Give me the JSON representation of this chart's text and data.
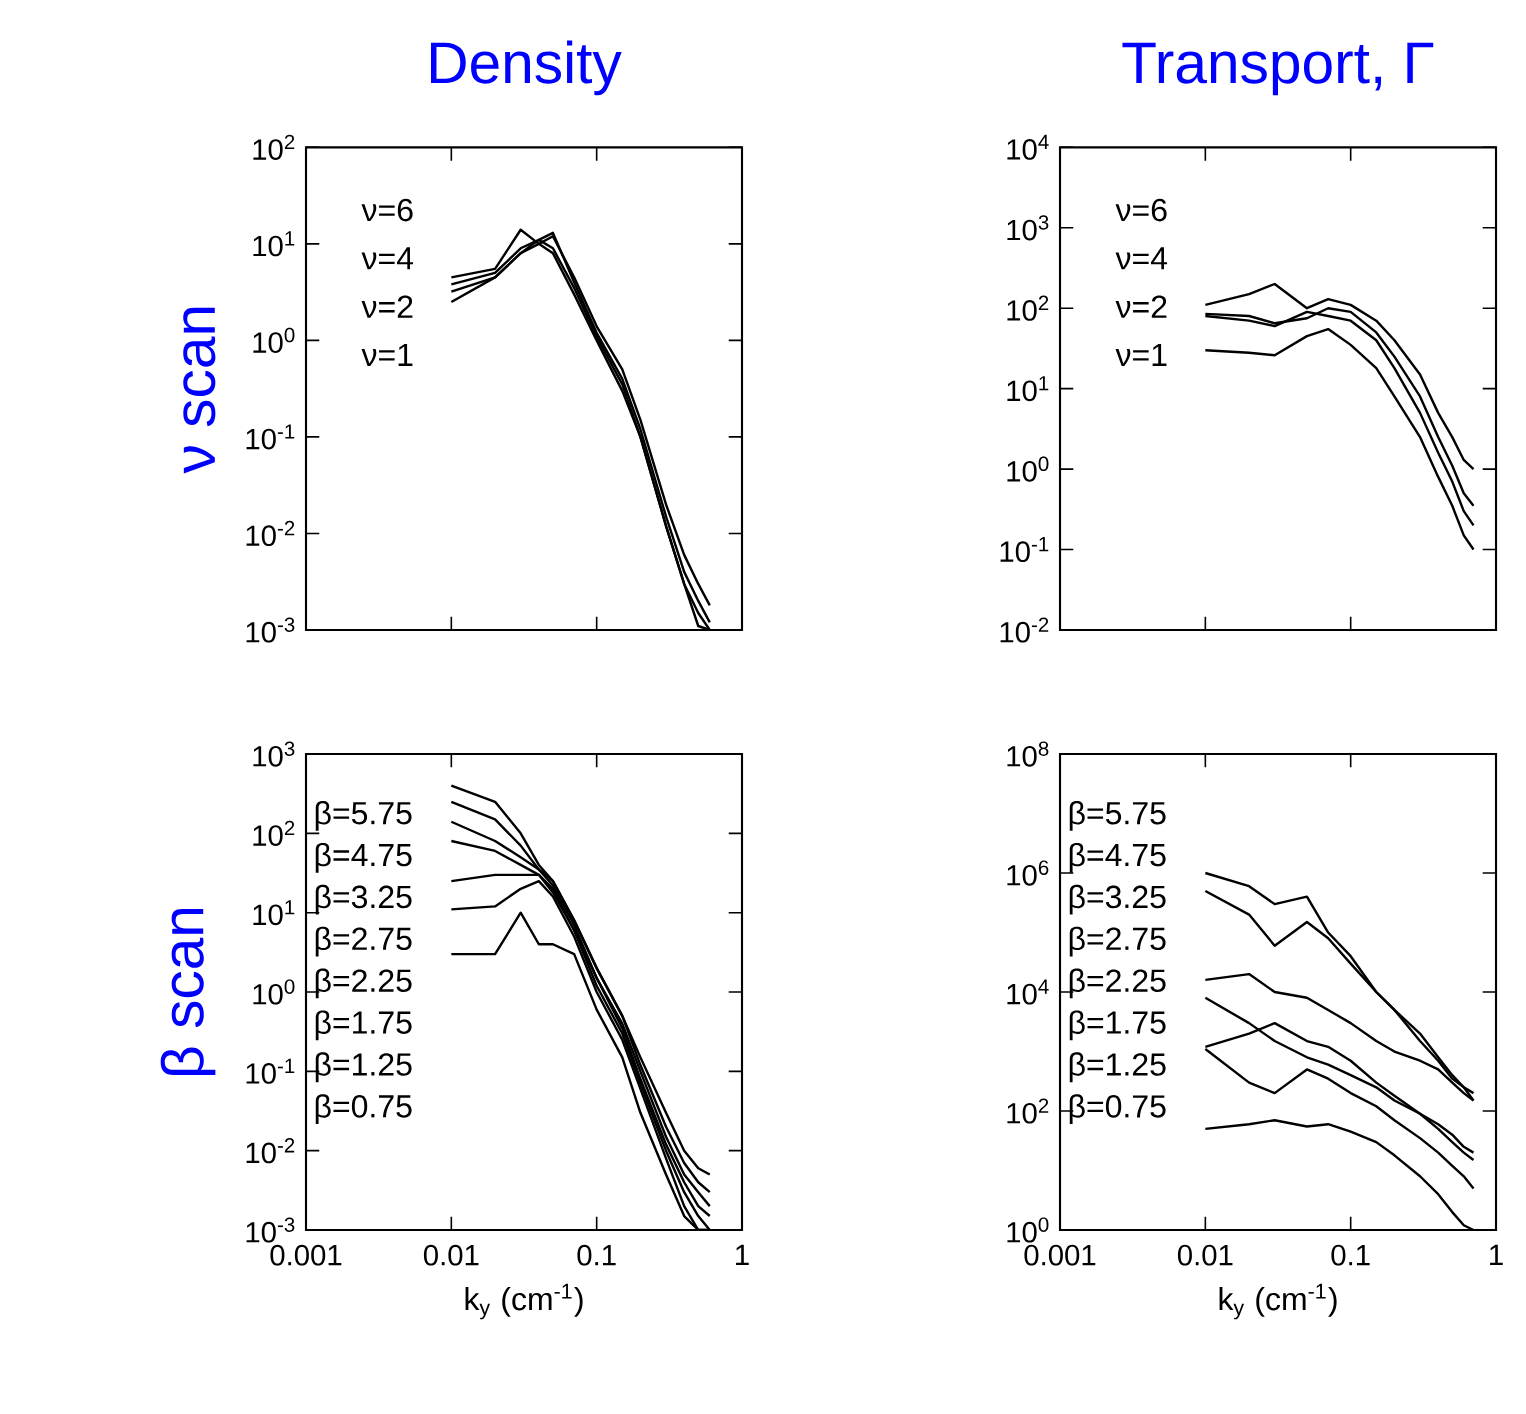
{
  "chart_data": [
    {
      "type": "line",
      "title": "Density",
      "ylabel": "ν scan",
      "log": "xy",
      "tick_labels": "y",
      "xlim": [
        0.001,
        1
      ],
      "ylim": [
        0.001,
        100
      ],
      "xticks": [
        0.001,
        0.01,
        0.1,
        1
      ],
      "yticks": [
        {
          "value": 0.001,
          "label": "10$^{-3}$"
        },
        {
          "value": 0.01,
          "label": "10$^{-2}$"
        },
        {
          "value": 0.1,
          "label": "10$^{-1}$"
        },
        {
          "value": 1,
          "label": "10$^{0}$"
        },
        {
          "value": 10,
          "label": "10$^{1}$"
        },
        {
          "value": 100,
          "label": "10$^{2}$"
        }
      ],
      "x": [
        0.01,
        0.02,
        0.03,
        0.04,
        0.05,
        0.07,
        0.1,
        0.15,
        0.2,
        0.3,
        0.4,
        0.5,
        0.6
      ],
      "series": [
        {
          "color": "#000000",
          "values": [
            4.5,
            5.5,
            14,
            10,
            8,
            3,
            1.0,
            0.3,
            0.1,
            0.012,
            0.003,
            0.0015,
            0.001
          ]
        },
        {
          "color": "#000000",
          "values": [
            3.8,
            5,
            9,
            11,
            13,
            4,
            1.2,
            0.4,
            0.12,
            0.015,
            0.004,
            0.002,
            0.0012
          ]
        },
        {
          "color": "#000000",
          "values": [
            3.2,
            4.5,
            8,
            10,
            12,
            4.5,
            1.4,
            0.5,
            0.15,
            0.02,
            0.006,
            0.003,
            0.0018
          ]
        },
        {
          "color": "#000000",
          "values": [
            2.5,
            4.5,
            8,
            11,
            9,
            3.5,
            1.1,
            0.35,
            0.1,
            0.012,
            0.003,
            0.0011,
            0.001
          ]
        }
      ],
      "annotations": [
        "ν=6",
        "ν=4",
        "ν=2",
        "ν=1"
      ]
    },
    {
      "type": "line",
      "title": "Transport, Γ",
      "log": "xy",
      "tick_labels": "y",
      "xlim": [
        0.001,
        1
      ],
      "ylim": [
        0.01,
        10000
      ],
      "xticks": [
        0.001,
        0.01,
        0.1,
        1
      ],
      "yticks": [
        {
          "value": 0.01,
          "label": "10$^{-2}$"
        },
        {
          "value": 0.1,
          "label": "10$^{-1}$"
        },
        {
          "value": 1,
          "label": "10$^{0}$"
        },
        {
          "value": 10,
          "label": "10$^{1}$"
        },
        {
          "value": 100,
          "label": "10$^{2}$"
        },
        {
          "value": 1000,
          "label": "10$^{3}$"
        },
        {
          "value": 10000,
          "label": "10$^{4}$"
        }
      ],
      "x": [
        0.01,
        0.02,
        0.03,
        0.05,
        0.07,
        0.1,
        0.15,
        0.2,
        0.3,
        0.4,
        0.5,
        0.6,
        0.7
      ],
      "series": [
        {
          "color": "#000000",
          "values": [
            110,
            150,
            200,
            100,
            130,
            110,
            70,
            40,
            15,
            5,
            2.5,
            1.3,
            1.0
          ]
        },
        {
          "color": "#000000",
          "values": [
            85,
            80,
            65,
            75,
            100,
            90,
            50,
            25,
            8,
            2.5,
            1.1,
            0.5,
            0.35
          ]
        },
        {
          "color": "#000000",
          "values": [
            80,
            70,
            60,
            90,
            80,
            70,
            40,
            18,
            5,
            1.6,
            0.7,
            0.3,
            0.2
          ]
        },
        {
          "color": "#000000",
          "values": [
            30,
            28,
            26,
            45,
            55,
            35,
            18,
            8,
            2.5,
            0.8,
            0.35,
            0.15,
            0.1
          ]
        }
      ],
      "annotations": [
        "ν=6",
        "ν=4",
        "ν=2",
        "ν=1"
      ]
    },
    {
      "type": "line",
      "ylabel": "β scan",
      "xlabel": "k$_{y}$ (cm$^{-1}$)",
      "log": "xy",
      "xlim": [
        0.001,
        1
      ],
      "ylim": [
        0.001,
        1000
      ],
      "xticks": [
        0.001,
        0.01,
        0.1,
        1
      ],
      "yticks": [
        {
          "value": 0.001,
          "label": "10$^{-3}$"
        },
        {
          "value": 0.01,
          "label": "10$^{-2}$"
        },
        {
          "value": 0.1,
          "label": "10$^{-1}$"
        },
        {
          "value": 1,
          "label": "10$^{0}$"
        },
        {
          "value": 10,
          "label": "10$^{1}$"
        },
        {
          "value": 100,
          "label": "10$^{2}$"
        },
        {
          "value": 1000,
          "label": "10$^{3}$"
        }
      ],
      "x": [
        0.01,
        0.02,
        0.03,
        0.04,
        0.05,
        0.07,
        0.1,
        0.15,
        0.2,
        0.3,
        0.4,
        0.5,
        0.6
      ],
      "series": [
        {
          "color": "#000000",
          "values": [
            400,
            250,
            100,
            40,
            25,
            8,
            2,
            0.5,
            0.15,
            0.03,
            0.01,
            0.006,
            0.005
          ]
        },
        {
          "color": "#000000",
          "values": [
            250,
            150,
            70,
            35,
            25,
            8,
            2,
            0.5,
            0.12,
            0.02,
            0.007,
            0.004,
            0.003
          ]
        },
        {
          "color": "#000000",
          "values": [
            140,
            80,
            50,
            35,
            22,
            7,
            1.5,
            0.4,
            0.1,
            0.015,
            0.005,
            0.003,
            0.002
          ]
        },
        {
          "color": "#000000",
          "values": [
            80,
            60,
            40,
            30,
            20,
            6,
            1.5,
            0.35,
            0.08,
            0.012,
            0.004,
            0.002,
            0.0015
          ]
        },
        {
          "color": "#000000",
          "values": [
            25,
            30,
            30,
            30,
            18,
            6,
            1.2,
            0.3,
            0.07,
            0.01,
            0.003,
            0.0015,
            0.001
          ]
        },
        {
          "color": "#000000",
          "values": [
            11,
            12,
            20,
            25,
            16,
            5,
            1.0,
            0.25,
            0.06,
            0.008,
            0.002,
            0.001,
            0.001
          ]
        },
        {
          "color": "#000000",
          "values": [
            3.0,
            3.0,
            10,
            4,
            4,
            3,
            0.6,
            0.15,
            0.03,
            0.005,
            0.0015,
            0.001,
            0.001
          ]
        }
      ],
      "annotations": [
        "β=5.75",
        "β=4.75",
        "β=3.25",
        "β=2.75",
        "β=2.25",
        "β=1.75",
        "β=1.25",
        "β=0.75"
      ]
    },
    {
      "type": "line",
      "xlabel": "k$_{y}$ (cm$^{-1}$)",
      "log": "xy",
      "xlim": [
        0.001,
        1
      ],
      "ylim": [
        1,
        100000000
      ],
      "xticks": [
        0.001,
        0.01,
        0.1,
        1
      ],
      "yticks": [
        {
          "value": 1,
          "label": "10$^{0}$"
        },
        {
          "value": 100,
          "label": "10$^{2}$"
        },
        {
          "value": 10000,
          "label": "10$^{4}$"
        },
        {
          "value": 1000000,
          "label": "10$^{6}$"
        },
        {
          "value": 100000000,
          "label": "10$^{8}$"
        }
      ],
      "x": [
        0.01,
        0.02,
        0.03,
        0.05,
        0.07,
        0.1,
        0.15,
        0.2,
        0.3,
        0.4,
        0.5,
        0.6,
        0.7
      ],
      "series": [
        {
          "color": "#000000",
          "values": [
            1000000,
            600000,
            300000,
            400000,
            100000,
            40000,
            10000,
            5000,
            2000,
            800,
            400,
            250,
            200
          ]
        },
        {
          "color": "#000000",
          "values": [
            500000,
            200000,
            60000,
            150000,
            80000,
            30000,
            10000,
            5000,
            1500,
            700,
            350,
            250,
            150
          ]
        },
        {
          "color": "#000000",
          "values": [
            16000,
            20000,
            10000,
            8000,
            5000,
            3000,
            1500,
            1000,
            700,
            500,
            300,
            200,
            150
          ]
        },
        {
          "color": "#000000",
          "values": [
            8000,
            3000,
            1500,
            800,
            600,
            400,
            250,
            150,
            90,
            60,
            40,
            25,
            20
          ]
        },
        {
          "color": "#000000",
          "values": [
            1200,
            2000,
            3000,
            1500,
            1200,
            700,
            300,
            180,
            90,
            50,
            30,
            20,
            15
          ]
        },
        {
          "color": "#000000",
          "values": [
            1100,
            300,
            200,
            500,
            350,
            200,
            120,
            70,
            35,
            20,
            12,
            8,
            5
          ]
        },
        {
          "color": "#000000",
          "values": [
            50,
            60,
            70,
            55,
            60,
            45,
            30,
            18,
            8,
            4,
            2,
            1.2,
            1
          ]
        }
      ],
      "annotations": [
        "β=5.75",
        "β=4.75",
        "β=3.25",
        "β=2.75",
        "β=2.25",
        "β=1.75",
        "β=1.25",
        "β=0.75"
      ]
    }
  ]
}
